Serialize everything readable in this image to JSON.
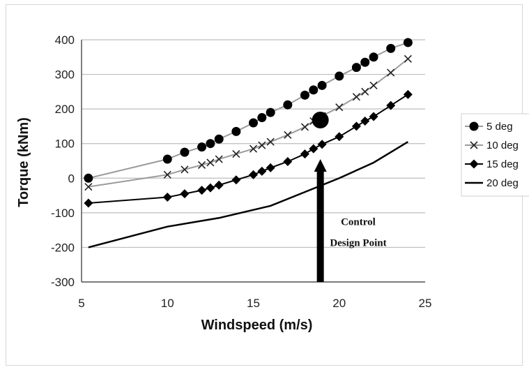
{
  "chart_data": {
    "type": "line",
    "xlabel": "Windspeed (m/s)",
    "ylabel": "Torque (kNm)",
    "xlim": [
      5,
      25
    ],
    "ylim": [
      -300,
      400
    ],
    "x_ticks": [
      "5",
      "10",
      "15",
      "20",
      "25"
    ],
    "y_ticks": [
      "400",
      "300",
      "200",
      "100",
      "0",
      "-100",
      "-200",
      "-300"
    ],
    "grid": "horizontal",
    "legend_position": "right",
    "series": [
      {
        "name": "5 deg",
        "color": "#000000",
        "line_color": "#9a9a9a",
        "marker": "circle",
        "x": [
          5.4,
          10,
          11,
          12,
          12.5,
          13,
          14,
          15,
          15.5,
          16,
          17,
          18,
          18.5,
          19,
          20,
          21,
          21.5,
          22,
          23,
          24
        ],
        "y": [
          0,
          55,
          75,
          90,
          100,
          113,
          135,
          160,
          175,
          190,
          212,
          240,
          255,
          268,
          295,
          320,
          335,
          350,
          375,
          392
        ]
      },
      {
        "name": "10 deg",
        "color": "#000000",
        "line_color": "#9a9a9a",
        "marker": "x",
        "x": [
          5.4,
          10,
          11,
          12,
          12.5,
          13,
          14,
          15,
          15.5,
          16,
          17,
          18,
          18.5,
          19,
          20,
          21,
          21.5,
          22,
          23,
          24
        ],
        "y": [
          -25,
          10,
          25,
          38,
          45,
          55,
          70,
          85,
          95,
          105,
          125,
          148,
          165,
          180,
          205,
          235,
          250,
          268,
          305,
          345
        ]
      },
      {
        "name": "15 deg",
        "color": "#000000",
        "line_color": "#000000",
        "marker": "diamond",
        "x": [
          5.4,
          10,
          11,
          12,
          12.5,
          13,
          14,
          15,
          15.5,
          16,
          17,
          18,
          18.5,
          19,
          20,
          21,
          21.5,
          22,
          23,
          24
        ],
        "y": [
          -72,
          -55,
          -45,
          -35,
          -28,
          -20,
          -5,
          10,
          20,
          30,
          48,
          70,
          85,
          98,
          120,
          150,
          165,
          178,
          210,
          242
        ]
      },
      {
        "name": "20 deg",
        "color": "#000000",
        "line_color": "#000000",
        "marker": "none",
        "x": [
          5.4,
          10,
          13,
          16,
          18,
          20,
          22,
          24
        ],
        "y": [
          -200,
          -140,
          -115,
          -80,
          -40,
          0,
          45,
          105
        ]
      }
    ],
    "design_point": {
      "x": 18.9,
      "y": 168
    },
    "arrow": {
      "x": 18.9,
      "y_start": -300,
      "y_end": 55
    },
    "annotation": {
      "lines": [
        "Control",
        "Design Point"
      ],
      "x": 19.4,
      "y": -160
    }
  }
}
